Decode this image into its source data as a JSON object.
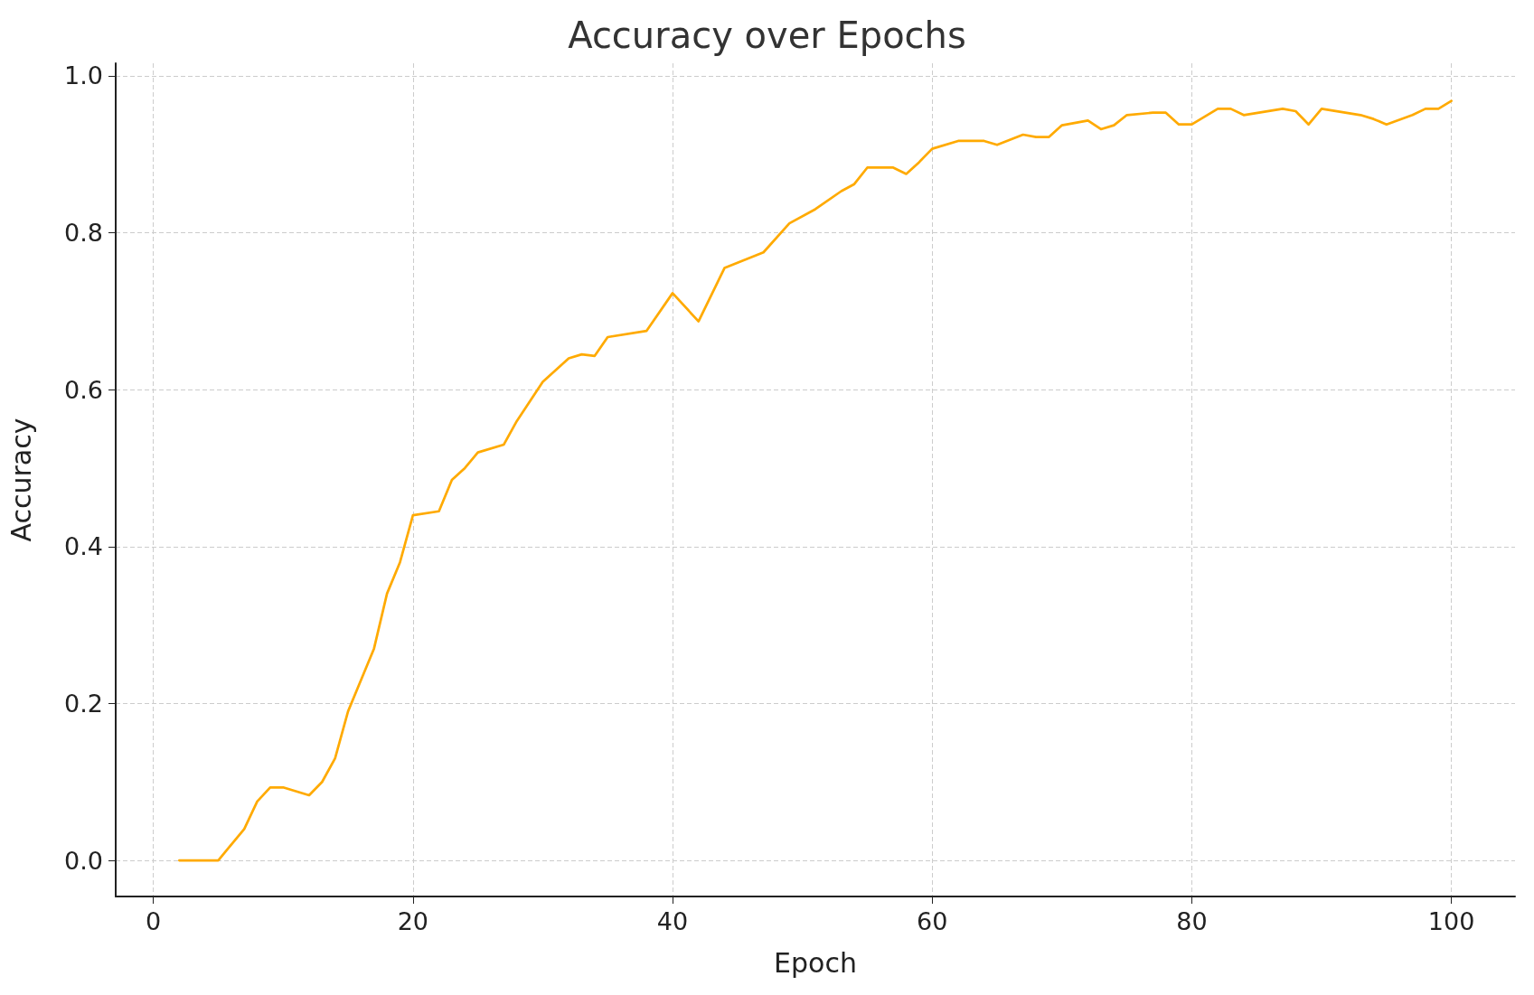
{
  "chart_data": {
    "type": "line",
    "title": "Accuracy over Epochs",
    "xlabel": "Epoch",
    "ylabel": "Accuracy",
    "x": [
      2,
      5,
      7,
      8,
      9,
      10,
      12,
      13,
      14,
      15,
      17,
      18,
      19,
      20,
      22,
      23,
      24,
      25,
      27,
      28,
      30,
      32,
      33,
      34,
      35,
      38,
      40,
      42,
      44,
      47,
      49,
      51,
      53,
      54,
      55,
      57,
      58,
      59,
      60,
      62,
      64,
      65,
      67,
      68,
      69,
      70,
      72,
      73,
      74,
      75,
      77,
      78,
      79,
      80,
      82,
      83,
      84,
      87,
      88,
      89,
      90,
      93,
      94,
      95,
      97,
      98,
      99,
      100
    ],
    "series": [
      {
        "color": "#ffaa00",
        "values": [
          0,
          0,
          0.04,
          0.075,
          0.093,
          0.093,
          0.083,
          0.1,
          0.13,
          0.19,
          0.27,
          0.34,
          0.38,
          0.44,
          0.445,
          0.485,
          0.5,
          0.52,
          0.53,
          0.56,
          0.61,
          0.64,
          0.645,
          0.643,
          0.667,
          0.675,
          0.723,
          0.687,
          0.755,
          0.775,
          0.812,
          0.83,
          0.853,
          0.862,
          0.883,
          0.883,
          0.875,
          0.89,
          0.907,
          0.917,
          0.917,
          0.912,
          0.925,
          0.922,
          0.922,
          0.937,
          0.943,
          0.932,
          0.937,
          0.95,
          0.953,
          0.953,
          0.938,
          0.938,
          0.958,
          0.958,
          0.95,
          0.958,
          0.955,
          0.938,
          0.958,
          0.95,
          0.945,
          0.938,
          0.95,
          0.958,
          0.958,
          0.968
        ]
      }
    ],
    "xlim": [
      -2.9,
      104.9
    ],
    "xticks": [
      0,
      20,
      40,
      60,
      80,
      100
    ],
    "ylim": [
      -0.046,
      1.016
    ],
    "yticks": [
      {
        "value": 0,
        "label": "0.0"
      },
      {
        "value": 0.2,
        "label": "0.2"
      },
      {
        "value": 0.4,
        "label": "0.4"
      },
      {
        "value": 0.6,
        "label": "0.6"
      },
      {
        "value": 0.8,
        "label": "0.8"
      },
      {
        "value": 1,
        "label": "1.0"
      }
    ],
    "grid": true,
    "marker": "none",
    "line_style": "solid"
  }
}
